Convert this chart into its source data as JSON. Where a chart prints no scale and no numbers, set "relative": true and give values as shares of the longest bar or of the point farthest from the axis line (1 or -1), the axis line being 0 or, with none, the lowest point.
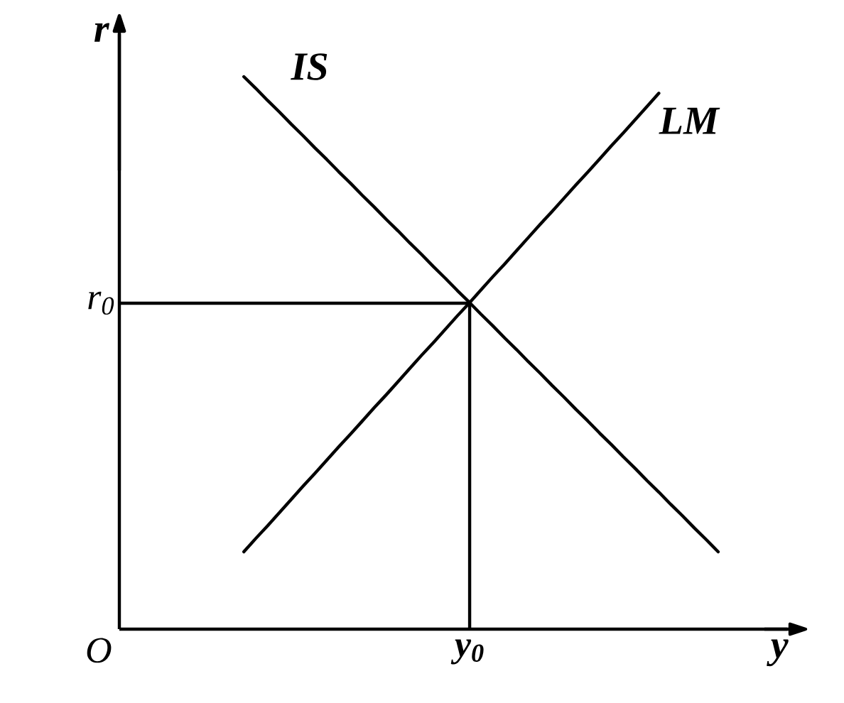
{
  "chart_data": {
    "type": "line",
    "relative": true,
    "xlabel": "y",
    "ylabel": "r",
    "marker": "none",
    "line_style": "solid",
    "categories": [
      null,
      null,
      null,
      null,
      null,
      null,
      null,
      null,
      null,
      null,
      null,
      null,
      null,
      null,
      null,
      null,
      null,
      null,
      null,
      null,
      null,
      null,
      null,
      null,
      null,
      null,
      null,
      null,
      null,
      null,
      null,
      null,
      null,
      null,
      null,
      null,
      null,
      null,
      null,
      null,
      null,
      null,
      null,
      null,
      null,
      null,
      null,
      null,
      null,
      null,
      null,
      null,
      null,
      null,
      null,
      null,
      null,
      null
    ],
    "series": [
      {
        "name": "IS",
        "color": "#000000",
        "values": [
          null,
          null,
          null,
          null,
          null,
          null,
          null,
          null,
          null,
          null,
          1.0,
          0.979,
          0.957,
          0.936,
          0.914,
          0.893,
          0.871,
          0.85,
          0.828,
          0.807,
          0.785,
          0.764,
          0.742,
          0.721,
          0.699,
          0.678,
          0.656,
          0.635,
          0.613,
          0.592,
          0.57,
          0.549,
          0.527,
          0.506,
          0.484,
          0.463,
          0.441,
          0.42,
          0.398,
          0.377,
          0.355,
          0.334,
          0.312,
          0.291,
          0.269,
          0.248,
          0.226,
          0.205,
          0.183,
          0.162,
          0.14,
          null,
          null,
          null,
          null,
          null,
          null,
          null
        ]
      },
      {
        "name": "LM",
        "color": "#000000",
        "values": [
          null,
          null,
          null,
          null,
          null,
          null,
          null,
          null,
          null,
          null,
          0.14,
          0.164,
          0.187,
          0.211,
          0.235,
          0.259,
          0.282,
          0.306,
          0.33,
          0.353,
          0.377,
          0.401,
          0.424,
          0.448,
          0.472,
          0.496,
          0.519,
          0.543,
          0.567,
          0.59,
          0.614,
          0.638,
          0.661,
          0.685,
          0.709,
          0.733,
          0.756,
          0.78,
          0.804,
          0.827,
          0.851,
          0.875,
          0.898,
          0.922,
          0.946,
          0.97,
          null,
          null,
          null,
          null,
          null,
          null,
          null,
          null,
          null,
          null,
          null,
          null
        ]
      }
    ],
    "ref_lines": [
      {
        "axis": "y",
        "value": 0.59,
        "label": "r$_{0}$",
        "color": "#000000"
      }
    ],
    "annotations": [
      "O",
      "y$_{0}$"
    ]
  }
}
